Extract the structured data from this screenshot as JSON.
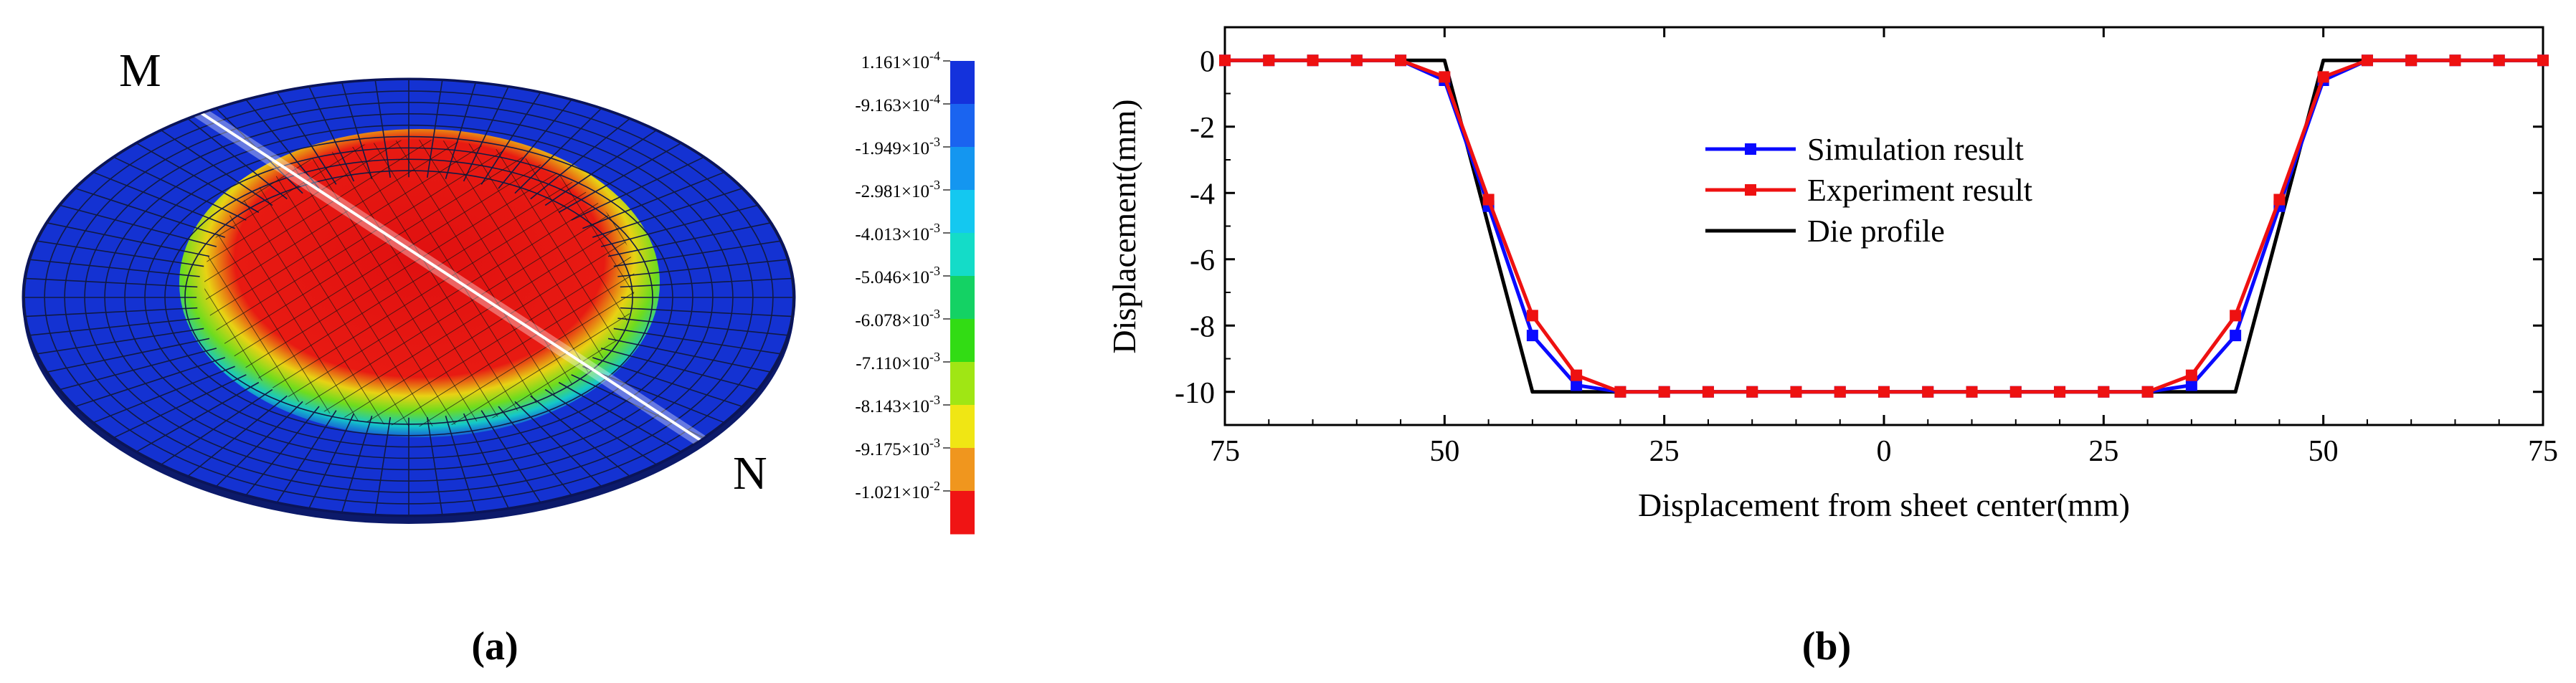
{
  "panel_a": {
    "caption": "(a)",
    "caption_parts": [
      "(",
      "a",
      ")"
    ],
    "line_labels": [
      "M",
      "N"
    ],
    "colorbar": {
      "labels": [
        "1.161×10^-4",
        "-9.163×10^-4",
        "-1.949×10^-3",
        "-2.981×10^-3",
        "-4.013×10^-3",
        "-5.046×10^-3",
        "-6.078×10^-3",
        "-7.110×10^-3",
        "-8.143×10^-3",
        "-9.175×10^-3",
        "-1.021×10^-2"
      ],
      "label_parts": [
        {
          "m": "1.161×10",
          "e": "-4"
        },
        {
          "m": "-9.163×10",
          "e": "-4"
        },
        {
          "m": "-1.949×10",
          "e": "-3"
        },
        {
          "m": "-2.981×10",
          "e": "-3"
        },
        {
          "m": "-4.013×10",
          "e": "-3"
        },
        {
          "m": "-5.046×10",
          "e": "-3"
        },
        {
          "m": "-6.078×10",
          "e": "-3"
        },
        {
          "m": "-7.110×10",
          "e": "-3"
        },
        {
          "m": "-8.143×10",
          "e": "-3"
        },
        {
          "m": "-9.175×10",
          "e": "-3"
        },
        {
          "m": "-1.021×10",
          "e": "-2"
        }
      ],
      "colors": [
        "#1432dc",
        "#1a64f0",
        "#1496f0",
        "#14c8f0",
        "#14dcc8",
        "#14d264",
        "#32dc14",
        "#a0e614",
        "#f0e614",
        "#f0961e",
        "#f01414"
      ]
    }
  },
  "panel_b": {
    "caption": "(b)",
    "caption_parts": [
      "(",
      "b",
      ")"
    ]
  },
  "chart_data": {
    "type": "line",
    "title": "",
    "xlabel": "Displacement from sheet center(mm)",
    "ylabel": "Displacement(mm)",
    "xlim": [
      -75,
      75
    ],
    "ylim": [
      -11,
      1
    ],
    "xticks": [
      -75,
      -50,
      -25,
      0,
      25,
      50,
      75
    ],
    "xtick_labels": [
      "75",
      "50",
      "25",
      "0",
      "25",
      "50",
      "75"
    ],
    "yticks": [
      0,
      -2,
      -4,
      -6,
      -8,
      -10
    ],
    "ytick_labels": [
      "0",
      "-2",
      "-4",
      "-6",
      "-8",
      "-10"
    ],
    "legend_position": "center",
    "grid": false,
    "series": [
      {
        "name": "Simulation result",
        "color": "#0a0aff",
        "marker": "square",
        "x": [
          -75,
          -70,
          -65,
          -60,
          -55,
          -50,
          -45,
          -40,
          -35,
          -30,
          -25,
          -20,
          -15,
          -10,
          -5,
          0,
          5,
          10,
          15,
          20,
          25,
          30,
          35,
          40,
          45,
          50,
          55,
          60,
          65,
          70,
          75
        ],
        "y": [
          0,
          0,
          0,
          0,
          0,
          -0.6,
          -4.4,
          -8.3,
          -9.8,
          -10,
          -10,
          -10,
          -10,
          -10,
          -10,
          -10,
          -10,
          -10,
          -10,
          -10,
          -10,
          -10,
          -9.8,
          -8.3,
          -4.4,
          -0.6,
          0,
          0,
          0,
          0,
          0
        ]
      },
      {
        "name": "Experiment result",
        "color": "#ee1111",
        "marker": "square",
        "x": [
          -75,
          -70,
          -65,
          -60,
          -55,
          -50,
          -45,
          -40,
          -35,
          -30,
          -25,
          -20,
          -15,
          -10,
          -5,
          0,
          5,
          10,
          15,
          20,
          25,
          30,
          35,
          40,
          45,
          50,
          55,
          60,
          65,
          70,
          75
        ],
        "y": [
          0,
          0,
          0,
          0,
          0,
          -0.5,
          -4.2,
          -7.7,
          -9.5,
          -10,
          -10,
          -10,
          -10,
          -10,
          -10,
          -10,
          -10,
          -10,
          -10,
          -10,
          -10,
          -10,
          -9.5,
          -7.7,
          -4.2,
          -0.5,
          0,
          0,
          0,
          0,
          0
        ]
      },
      {
        "name": "Die profile",
        "color": "#000000",
        "marker": "none",
        "x": [
          -75,
          -50,
          -40,
          40,
          50,
          75
        ],
        "y": [
          0,
          0,
          -10,
          -10,
          0,
          0
        ]
      }
    ]
  }
}
